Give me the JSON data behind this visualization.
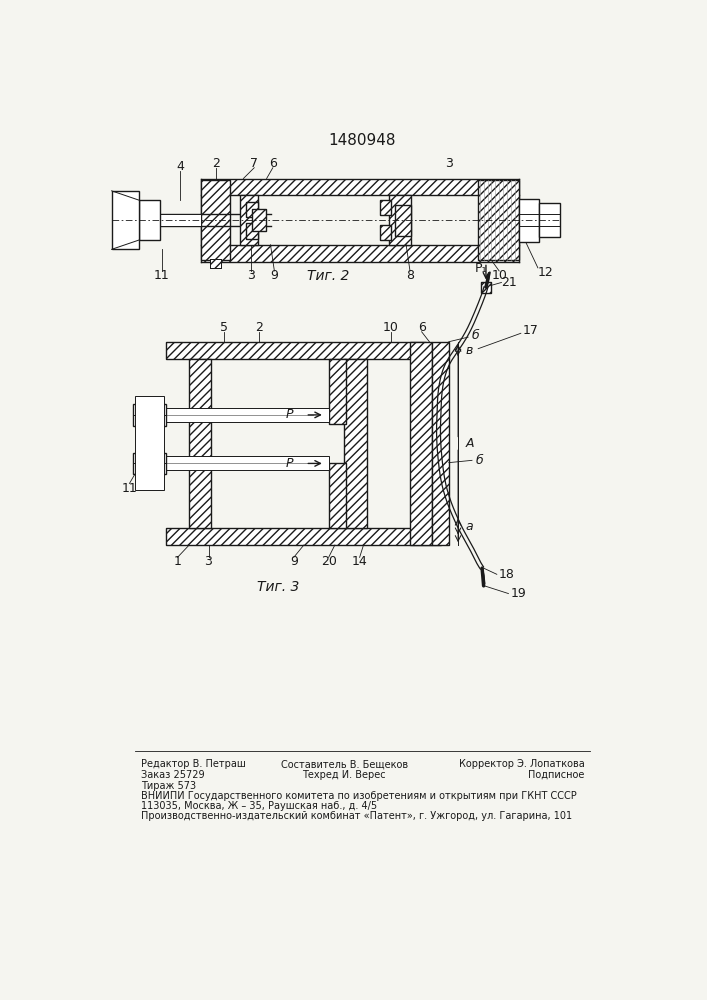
{
  "title": "1480948",
  "fig2_caption": "Τиг. 2",
  "fig3_caption": "Τиг. 3",
  "bg_color": "#f5f5f0",
  "lc": "#1a1a1a",
  "footer": {
    "col1": [
      "Редактор В. Петраш",
      "Заказ 25729",
      "Тираж 573"
    ],
    "col2": [
      "Составитель В. Бещеков",
      "Техред И. Верес",
      ""
    ],
    "col3": [
      "Корректор Э. Лопаткова",
      "Подписное",
      ""
    ],
    "full_lines": [
      "ВНИИПИ Государственного комитета по изобретениям и открытиям при ГКНТ СССР",
      "113035, Москва, Ж – 35, Раушская наб., д. 4/5",
      "Производственно-издательский комбинат «Патент», г. Ужгород, ул. Гагарина, 101"
    ]
  }
}
